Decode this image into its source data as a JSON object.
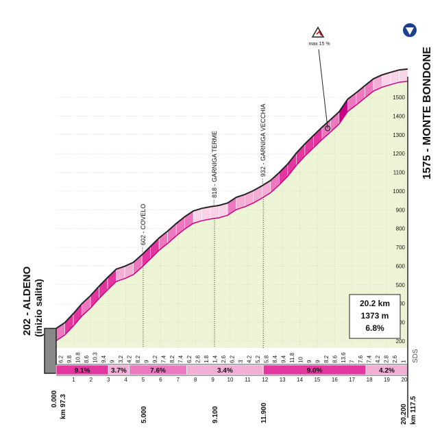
{
  "chart_data": {
    "type": "climb-profile",
    "start": {
      "label": "202 - ALDENO",
      "note": "(inizio salita)",
      "elevation": 202,
      "km_label": "0.000",
      "race_km": "km 97.3"
    },
    "finish": {
      "label": "1575 - MONTE BONDONE",
      "distance": 20.2,
      "km_label": "20.200",
      "race_km": "km 117.5"
    },
    "waypoints": [
      {
        "label": "602 - COVELO",
        "km": 5.0,
        "km_label": "5.000"
      },
      {
        "label": "818 - GARNIGA TERME",
        "km": 9.1,
        "km_label": "9.100"
      },
      {
        "label": "932 - GARNIGA VECCHIA",
        "km": 11.9,
        "km_label": "11.900"
      }
    ],
    "max_gradient": {
      "label": "max 15 %",
      "km": 15.6
    },
    "summary": [
      "20.2 km",
      "1373 m",
      "6.8%"
    ],
    "gradients": [
      6.2,
      9.8,
      10.8,
      8.6,
      10.3,
      9.4,
      9.0,
      3.2,
      4.2,
      8.2,
      9.0,
      9.2,
      7.4,
      8.2,
      7.4,
      6.2,
      2.8,
      1.8,
      1.4,
      2.6,
      6.2,
      3.0,
      4.2,
      5.2,
      5.8,
      8.4,
      9.4,
      11.8,
      10.0,
      9.0,
      9.0,
      8.2,
      8.6,
      13.6,
      7.0,
      7.6,
      7.4,
      4.2,
      2.8,
      2.6,
      1.0
    ],
    "segments": [
      {
        "from": 0,
        "to": 3,
        "value": 9.1,
        "label": "9.1%"
      },
      {
        "from": 3,
        "to": 4.2,
        "value": 3.7,
        "label": "3.7%"
      },
      {
        "from": 4.2,
        "to": 7.5,
        "value": 7.6,
        "label": "7.6%"
      },
      {
        "from": 7.5,
        "to": 11.9,
        "value": 3.4,
        "label": "3.4%"
      },
      {
        "from": 11.9,
        "to": 17.8,
        "value": 9.0,
        "label": "9.0%"
      },
      {
        "from": 17.8,
        "to": 20.2,
        "value": 4.2,
        "label": "4.2%"
      }
    ],
    "xticks": [
      1,
      2,
      3,
      4,
      5,
      6,
      7,
      8,
      9,
      10,
      11,
      12,
      13,
      14,
      15,
      16,
      17,
      18,
      19,
      20
    ],
    "ylim": [
      150,
      1650
    ],
    "yticks": [
      200,
      300,
      400,
      500,
      600,
      700,
      800,
      900,
      1000,
      1100,
      1200,
      1300,
      1400,
      1500
    ],
    "logo": "SDS"
  }
}
